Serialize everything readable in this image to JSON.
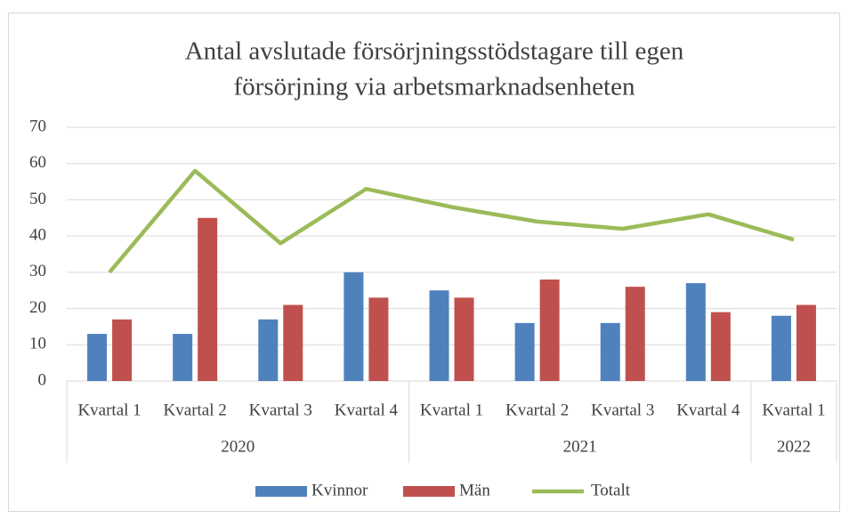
{
  "chart_data": {
    "type": "bar-line",
    "title": [
      "Antal avslutade försörjningsstödstagare till egen",
      "försörjning via arbetsmarknadsenheten"
    ],
    "categories": [
      "Kvartal 1",
      "Kvartal 2",
      "Kvartal 3",
      "Kvartal 4",
      "Kvartal 1",
      "Kvartal 2",
      "Kvartal 3",
      "Kvartal 4",
      "Kvartal 1"
    ],
    "groups": [
      {
        "label": "2020",
        "size": 4
      },
      {
        "label": "2021",
        "size": 4
      },
      {
        "label": "2022",
        "size": 1
      }
    ],
    "series": [
      {
        "name": "Kvinnor",
        "type": "bar",
        "color": "#4f81bd",
        "values": [
          13,
          13,
          17,
          30,
          25,
          16,
          16,
          27,
          18
        ]
      },
      {
        "name": "Män",
        "type": "bar",
        "color": "#c0504d",
        "values": [
          17,
          45,
          21,
          23,
          23,
          28,
          26,
          19,
          21
        ]
      },
      {
        "name": "Totalt",
        "type": "line",
        "color": "#9bbb59",
        "values": [
          30,
          58,
          38,
          53,
          48,
          44,
          42,
          46,
          39
        ]
      }
    ],
    "ylim": [
      0,
      70
    ],
    "yticks": [
      0,
      10,
      20,
      30,
      40,
      50,
      60,
      70
    ],
    "grid": true,
    "legend": "bottom"
  }
}
